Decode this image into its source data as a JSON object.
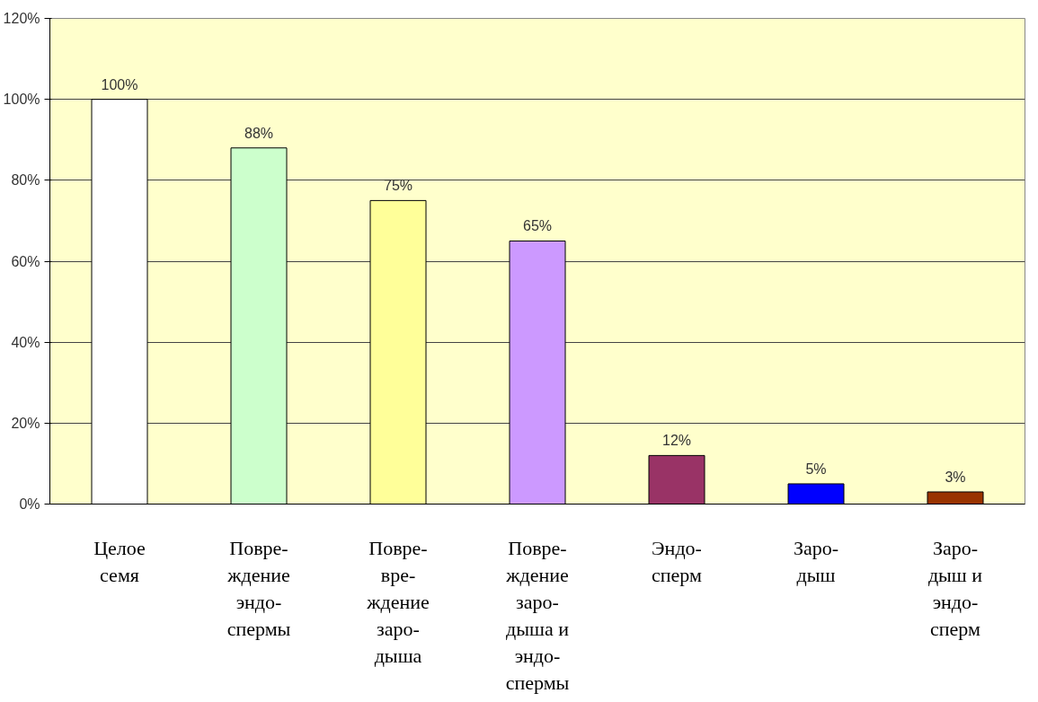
{
  "chart_data": {
    "type": "bar",
    "categories": [
      "Целое\nсемя",
      "Повре-\nждение\nэндо-\nспермы",
      "Повре-\nвре-\nждение\nзаро-\nдыша",
      "Повре-\nждение\nзаро-\nдыша и\nэндо-\nспермы",
      "Эндо-\nсперм",
      "Заро-\nдыш",
      "Заро-\nдыш и\nэндо-\nсперм"
    ],
    "values": [
      100,
      88,
      75,
      65,
      12,
      5,
      3
    ],
    "colors": [
      "#ffffff",
      "#ccffcc",
      "#ffff99",
      "#cc99ff",
      "#993366",
      "#0000ff",
      "#993300"
    ],
    "value_labels": [
      "100%",
      "88%",
      "75%",
      "65%",
      "12%",
      "5%",
      "3%"
    ],
    "ylim": [
      0,
      120
    ],
    "yticks": [
      {
        "value": 0,
        "label": "0%"
      },
      {
        "value": 20,
        "label": "20%"
      },
      {
        "value": 40,
        "label": "40%"
      },
      {
        "value": 60,
        "label": "60%"
      },
      {
        "value": 80,
        "label": "80%"
      },
      {
        "value": 100,
        "label": "100%"
      },
      {
        "value": 120,
        "label": "120%"
      }
    ],
    "grid": "y"
  }
}
